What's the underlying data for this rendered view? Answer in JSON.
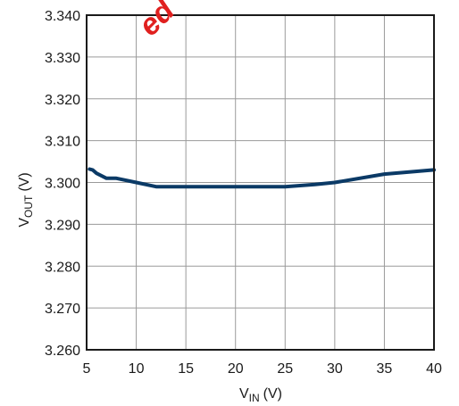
{
  "watermark": "ed",
  "chart_data": {
    "type": "line",
    "title": "",
    "xlabel": {
      "main": "V",
      "sub": "IN",
      "unit": "(V)"
    },
    "ylabel": {
      "main": "V",
      "sub": "OUT",
      "unit": "(V)"
    },
    "xlim": [
      5,
      40
    ],
    "ylim": [
      3.26,
      3.34
    ],
    "xticks": [
      "5",
      "10",
      "15",
      "20",
      "25",
      "30",
      "35",
      "40"
    ],
    "yticks": [
      "3.260",
      "3.270",
      "3.280",
      "3.290",
      "3.300",
      "3.310",
      "3.320",
      "3.330",
      "3.340"
    ],
    "grid": true,
    "colors": {
      "line": "#0b3a66",
      "grid": "#9a9a9a",
      "frame": "#1a1a1a"
    },
    "series": [
      {
        "x": [
          5.3,
          5.6,
          6.0,
          7.0,
          8.0,
          10.0,
          12.0,
          15.0,
          20.0,
          25.0,
          28.0,
          30.0,
          35.0,
          40.0
        ],
        "y": [
          3.3032,
          3.303,
          3.3022,
          3.301,
          3.301,
          3.3,
          3.299,
          3.299,
          3.299,
          3.299,
          3.2995,
          3.3,
          3.302,
          3.303
        ]
      }
    ]
  }
}
